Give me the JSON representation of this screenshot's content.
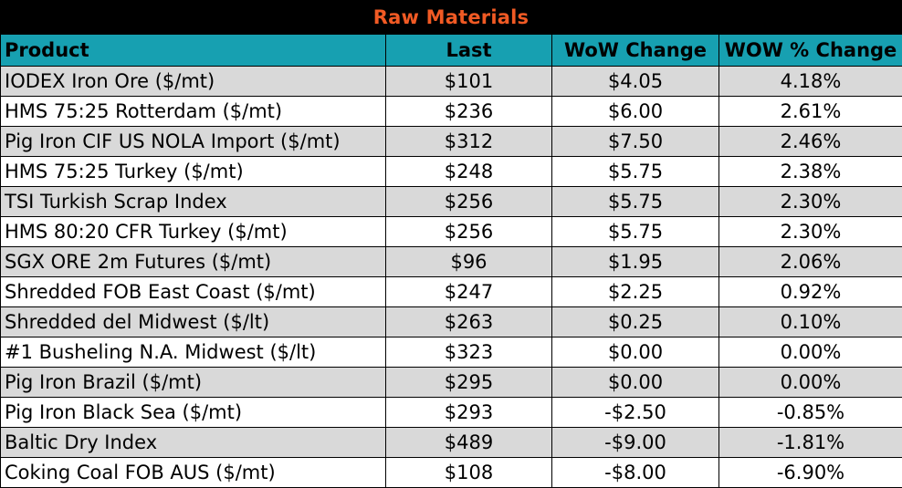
{
  "title": "Raw Materials",
  "colors": {
    "title_bg": "#000000",
    "title_text": "#f15a24",
    "header_bg": "#17a0b1",
    "row_alt": "#d9d9d9",
    "row_plain": "#ffffff"
  },
  "columns": [
    "Product",
    "Last",
    "WoW Change",
    "WOW % Change"
  ],
  "rows": [
    {
      "product": "IODEX  Iron Ore ($/mt)",
      "last": "$101",
      "wow": "$4.05",
      "pct": "4.18%"
    },
    {
      "product": "HMS 75:25 Rotterdam ($/mt)",
      "last": "$236",
      "wow": "$6.00",
      "pct": "2.61%"
    },
    {
      "product": "Pig Iron CIF US NOLA Import ($/mt)",
      "last": "$312",
      "wow": "$7.50",
      "pct": "2.46%"
    },
    {
      "product": "HMS 75:25 Turkey ($/mt)",
      "last": "$248",
      "wow": "$5.75",
      "pct": "2.38%"
    },
    {
      "product": "TSI Turkish Scrap Index",
      "last": "$256",
      "wow": "$5.75",
      "pct": "2.30%"
    },
    {
      "product": "HMS 80:20 CFR Turkey ($/mt)",
      "last": "$256",
      "wow": "$5.75",
      "pct": "2.30%"
    },
    {
      "product": "SGX ORE 2m Futures ($/mt)",
      "last": "$96",
      "wow": "$1.95",
      "pct": "2.06%"
    },
    {
      "product": "Shredded FOB East Coast ($/mt)",
      "last": "$247",
      "wow": "$2.25",
      "pct": "0.92%"
    },
    {
      "product": "Shredded del  Midwest ($/lt)",
      "last": "$263",
      "wow": "$0.25",
      "pct": "0.10%"
    },
    {
      "product": "#1 Busheling N.A. Midwest ($/lt)",
      "last": "$323",
      "wow": "$0.00",
      "pct": "0.00%"
    },
    {
      "product": "Pig Iron Brazil ($/mt)",
      "last": "$295",
      "wow": "$0.00",
      "pct": "0.00%"
    },
    {
      "product": "Pig Iron Black Sea ($/mt)",
      "last": "$293",
      "wow": "-$2.50",
      "pct": "-0.85%"
    },
    {
      "product": "Baltic Dry Index",
      "last": "$489",
      "wow": "-$9.00",
      "pct": "-1.81%"
    },
    {
      "product": "Coking Coal FOB AUS ($/mt)",
      "last": "$108",
      "wow": "-$8.00",
      "pct": "-6.90%"
    }
  ]
}
